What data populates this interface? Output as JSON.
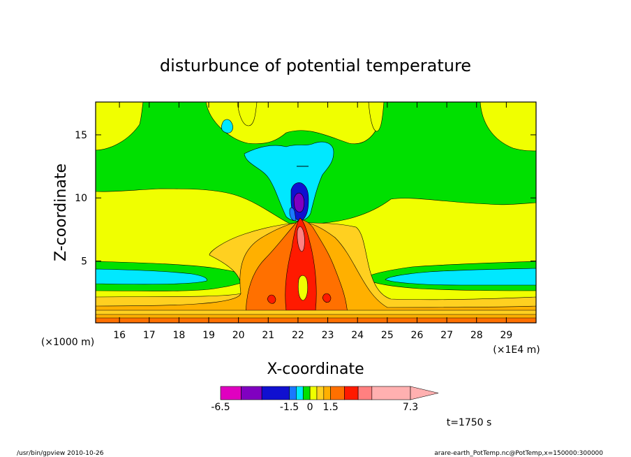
{
  "chart_data": {
    "type": "contour",
    "title": "disturbunce of potential temperature",
    "xlabel": "X-coordinate",
    "ylabel": "Z-coordinate",
    "x_unit": "(×1E4 m)",
    "z_unit": "(×1000 m)",
    "xlim": [
      15.2,
      30.0
    ],
    "ylim": [
      0.1,
      17.6
    ],
    "x_ticks": [
      "16",
      "17",
      "18",
      "19",
      "20",
      "21",
      "22",
      "23",
      "24",
      "25",
      "26",
      "27",
      "28",
      "29"
    ],
    "y_ticks": [
      "5",
      "10",
      "15"
    ],
    "colorbar": {
      "levels": [
        -6.5,
        -5.0,
        -3.5,
        -1.5,
        -1.0,
        -0.5,
        0,
        0.5,
        1.0,
        1.5,
        2.5,
        3.5,
        4.5,
        7.3
      ],
      "colors": [
        "#e000c0",
        "#8000c0",
        "#1010d0",
        "#1a78ff",
        "#00e8ff",
        "#00e000",
        "#f0ff00",
        "#ffd020",
        "#ffb000",
        "#ff7000",
        "#ff1a00",
        "#ff8080",
        "#ffb0b0"
      ],
      "tick_labels": [
        "-6.5",
        "-1.5",
        "0",
        "1.5",
        "7.3"
      ]
    },
    "time_label": "t=1750 s"
  },
  "footer": {
    "left": "/usr/bin/gpview   2010-10-26",
    "right": "arare-earth_PotTemp.nc@PotTemp,x=150000:300000"
  }
}
